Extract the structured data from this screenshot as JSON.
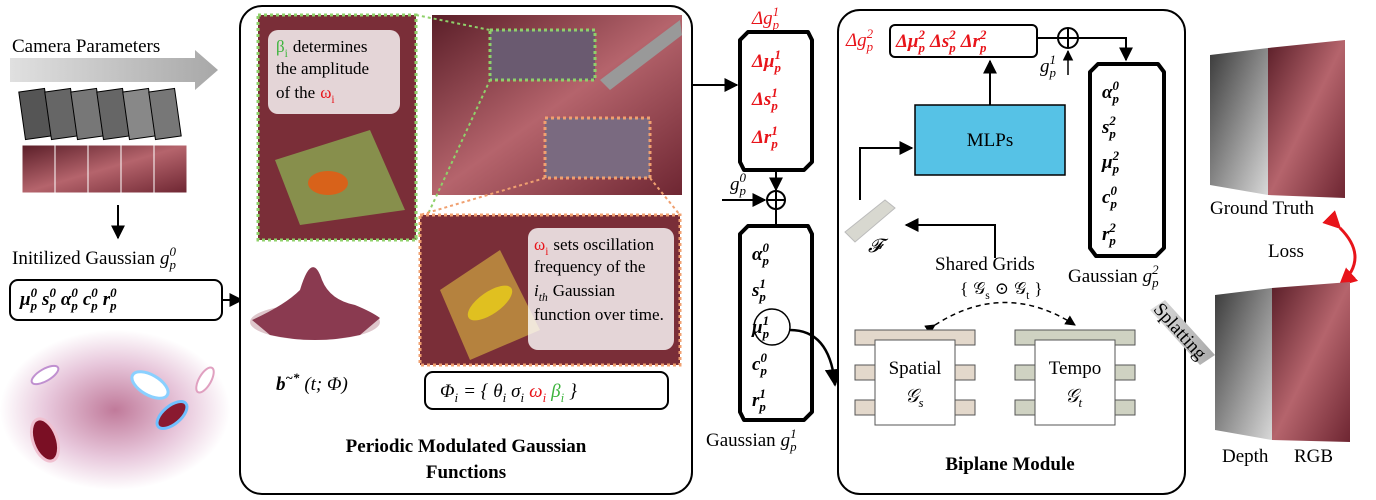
{
  "input": {
    "camera_parameters": "Camera Parameters",
    "initialized": {
      "label": "Initilized Gaussian",
      "term": {
        "base": "g",
        "sub": "p",
        "sup": "0"
      }
    },
    "params": [
      {
        "base": "μ",
        "sub": "p",
        "sup": "0"
      },
      {
        "base": "s",
        "sub": "p",
        "sup": "0"
      },
      {
        "base": "α",
        "sub": "p",
        "sup": "0"
      },
      {
        "base": "c",
        "sub": "p",
        "sup": "0"
      },
      {
        "base": "r",
        "sub": "p",
        "sup": "0"
      }
    ]
  },
  "periodic": {
    "beta_note": {
      "symbol": {
        "base": "β",
        "sub": "i"
      },
      "lines": [
        "determines",
        "the amplitude",
        "of the"
      ],
      "omega": {
        "base": "ω",
        "sub": "i"
      }
    },
    "omega_note": {
      "symbol": {
        "base": "ω",
        "sub": "i"
      },
      "lines": [
        "sets oscillation",
        "frequency of the"
      ],
      "ith": {
        "base": "i",
        "sub": "th"
      },
      "rest": [
        "Gaussian",
        "function over time."
      ]
    },
    "b_label": {
      "term": {
        "base": "b",
        "sup": "~*"
      },
      "args": "(t; Φ)"
    },
    "phi": {
      "lhs": {
        "base": "Φ",
        "sub": "i"
      },
      "open": "= {",
      "terms": [
        {
          "base": "θ",
          "sub": "i"
        },
        {
          "base": "σ",
          "sub": "i"
        },
        {
          "base": "ω",
          "sub": "i"
        },
        {
          "base": "β",
          "sub": "i"
        }
      ],
      "close": "}"
    },
    "title": [
      "Periodic Modulated Gaussian",
      "Functions"
    ]
  },
  "deformation1": {
    "delta_g": {
      "base": "Δg",
      "sub": "p",
      "sup": "1"
    },
    "deltas": [
      {
        "base": "Δμ",
        "sub": "p",
        "sup": "1"
      },
      {
        "base": "Δs",
        "sub": "p",
        "sup": "1"
      },
      {
        "base": "Δr",
        "sub": "p",
        "sup": "1"
      }
    ],
    "g0": {
      "base": "g",
      "sub": "p",
      "sup": "0"
    }
  },
  "gaussian1": {
    "params": [
      {
        "base": "α",
        "sub": "p",
        "sup": "0"
      },
      {
        "base": "s",
        "sub": "p",
        "sup": "1"
      },
      {
        "base": "μ",
        "sub": "p",
        "sup": "1"
      },
      {
        "base": "c",
        "sub": "p",
        "sup": "0"
      },
      {
        "base": "r",
        "sub": "p",
        "sup": "1"
      }
    ],
    "label": "Gaussian",
    "term": {
      "base": "g",
      "sub": "p",
      "sup": "1"
    }
  },
  "biplane": {
    "delta_g": {
      "base": "Δg",
      "sub": "p",
      "sup": "2"
    },
    "deltas": [
      {
        "base": "Δμ",
        "sub": "p",
        "sup": "2"
      },
      {
        "base": "Δs",
        "sub": "p",
        "sup": "2"
      },
      {
        "base": "Δr",
        "sub": "p",
        "sup": "2"
      }
    ],
    "g1": {
      "base": "g",
      "sub": "p",
      "sup": "1"
    },
    "mlps": "MLPs",
    "feature": "𝓕",
    "shared_grids": "Shared Grids",
    "grids_expr": [
      "{",
      {
        "base": "𝒢",
        "sub": "s"
      },
      "⊙",
      {
        "base": "𝒢",
        "sub": "t"
      },
      "}"
    ],
    "spatial": {
      "label": "Spatial",
      "term": {
        "base": "𝒢",
        "sub": "s"
      }
    },
    "tempo": {
      "label": "Tempo",
      "term": {
        "base": "𝒢",
        "sub": "t"
      }
    },
    "title": "Biplane Module"
  },
  "gaussian2": {
    "params": [
      {
        "base": "α",
        "sub": "p",
        "sup": "0"
      },
      {
        "base": "s",
        "sub": "p",
        "sup": "2"
      },
      {
        "base": "μ",
        "sub": "p",
        "sup": "2"
      },
      {
        "base": "c",
        "sub": "p",
        "sup": "0"
      },
      {
        "base": "r",
        "sub": "p",
        "sup": "2"
      }
    ],
    "label": "Gaussian",
    "term": {
      "base": "g",
      "sub": "p",
      "sup": "2"
    }
  },
  "output": {
    "ground_truth": "Ground Truth",
    "loss": "Loss",
    "splatting": "Splatting",
    "depth": "Depth",
    "rgb": "RGB"
  }
}
